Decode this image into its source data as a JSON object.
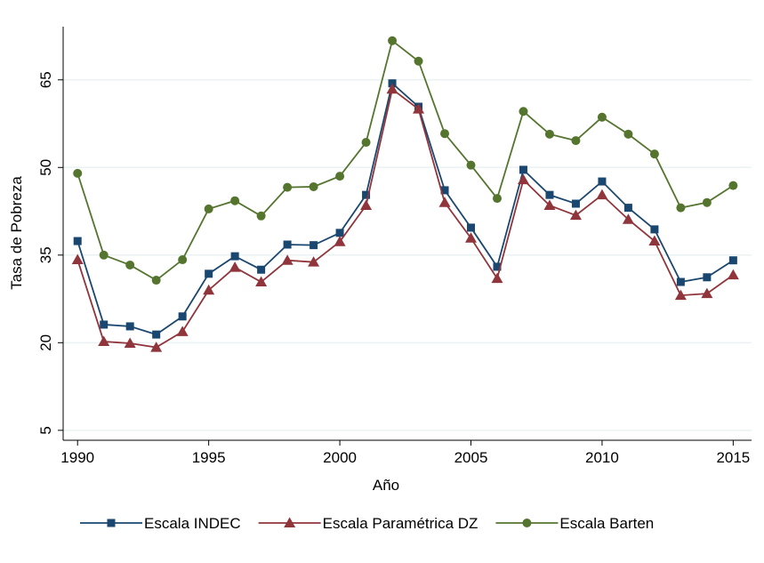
{
  "chart_data": {
    "type": "line",
    "x_label": "Año",
    "y_label": "Tasa de Pobreza",
    "x": [
      1990,
      1991,
      1992,
      1993,
      1994,
      1995,
      1996,
      1997,
      1998,
      1999,
      2000,
      2001,
      2002,
      2003,
      2004,
      2005,
      2006,
      2007,
      2008,
      2009,
      2010,
      2011,
      2012,
      2013,
      2014,
      2015
    ],
    "series": [
      {
        "name": "Escala INDEC",
        "color": "#1a476f",
        "marker": "square",
        "values": [
          37.4,
          23.1,
          22.8,
          21.4,
          24.5,
          31.8,
          34.8,
          32.5,
          36.8,
          36.7,
          38.8,
          45.3,
          64.4,
          60.4,
          46.1,
          39.7,
          33.0,
          49.6,
          45.3,
          43.8,
          47.6,
          43.1,
          39.4,
          30.4,
          31.2,
          34.1
        ]
      },
      {
        "name": "Escala Paramétrica DZ",
        "color": "#90353b",
        "marker": "triangle",
        "values": [
          34.2,
          20.2,
          19.9,
          19.2,
          21.9,
          29.0,
          32.9,
          30.4,
          34.1,
          33.8,
          37.3,
          43.5,
          63.4,
          60.0,
          44.0,
          37.9,
          31.0,
          47.9,
          43.5,
          41.8,
          45.3,
          41.1,
          37.4,
          28.1,
          28.4,
          31.6
        ]
      },
      {
        "name": "Escala Barten",
        "color": "#55752f",
        "marker": "circle",
        "values": [
          49.0,
          35.0,
          33.3,
          30.7,
          34.2,
          42.9,
          44.3,
          41.7,
          46.6,
          46.7,
          48.5,
          54.3,
          71.7,
          68.2,
          55.8,
          50.4,
          44.7,
          59.6,
          55.7,
          54.6,
          58.6,
          55.7,
          52.3,
          43.1,
          44.0,
          46.9
        ]
      }
    ],
    "xlim": [
      1989.45,
      2015.7
    ],
    "xticks": [
      1990,
      1995,
      2000,
      2005,
      2010,
      2015
    ],
    "ylim": [
      3.3,
      74.1
    ],
    "yticks": [
      5,
      20,
      35,
      50,
      65
    ],
    "grid": true,
    "legend": "bottom"
  }
}
